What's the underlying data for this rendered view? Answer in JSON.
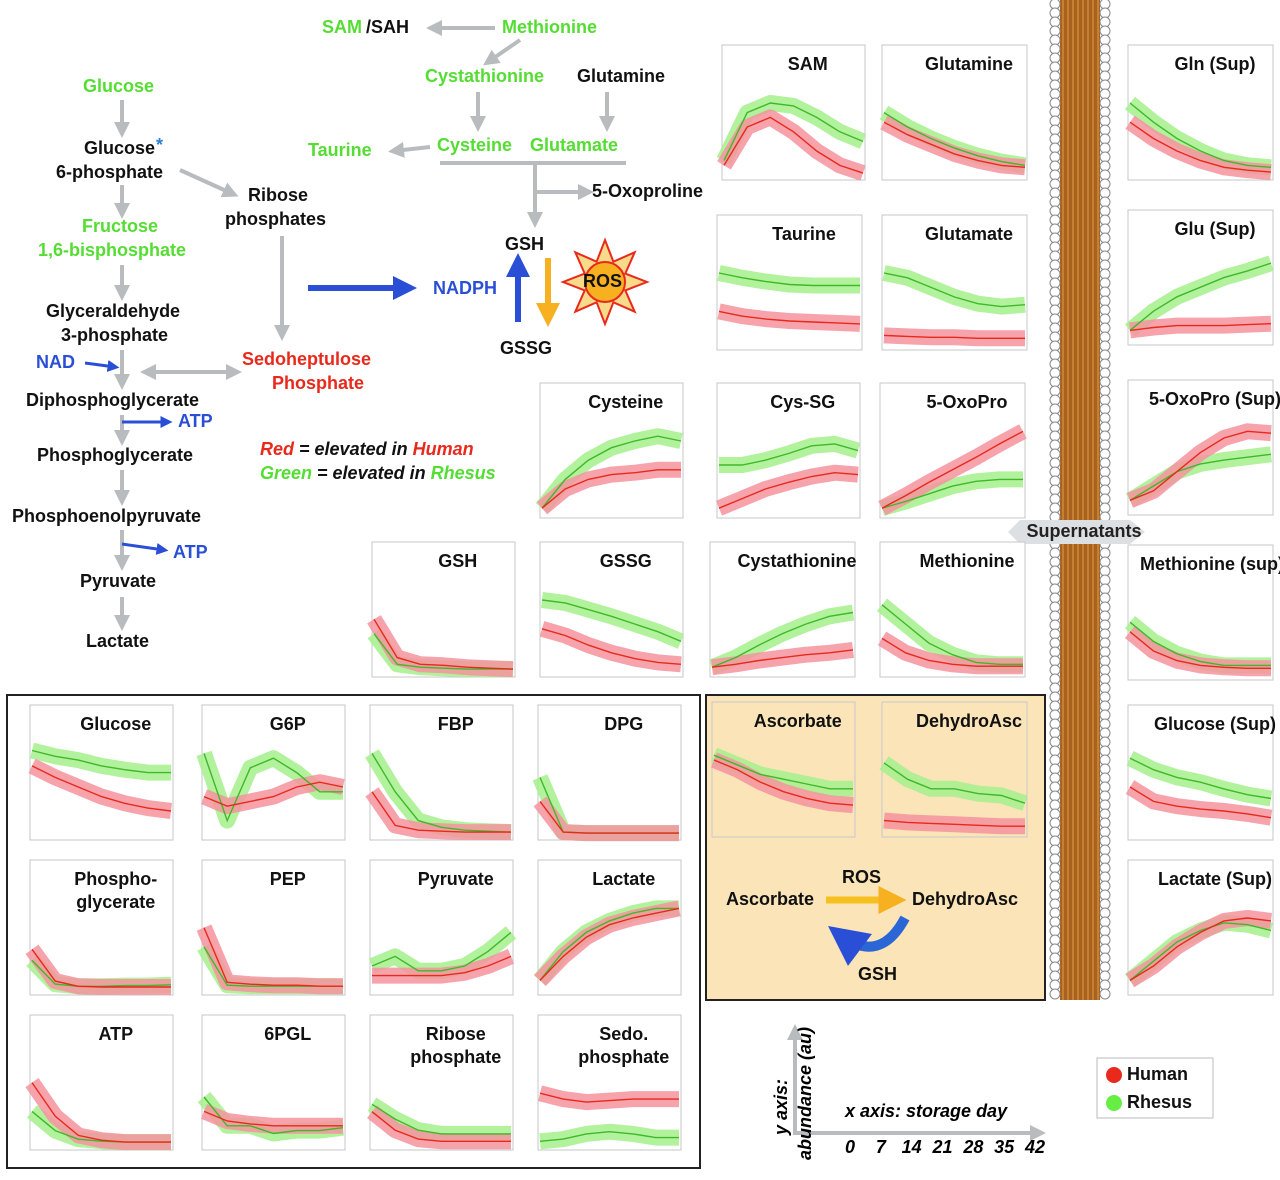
{
  "pathway": {
    "nodes": [
      {
        "label": "SAM",
        "color": "#55dd33"
      },
      {
        "label": "/SAH",
        "color": "#111111"
      },
      {
        "label": "Methionine",
        "color": "#55dd33"
      },
      {
        "label": "Cystathionine",
        "color": "#55dd33"
      },
      {
        "label": "Glutamine",
        "color": "#111111"
      },
      {
        "label": "Taurine",
        "color": "#55dd33"
      },
      {
        "label": "Cysteine",
        "color": "#55dd33"
      },
      {
        "label": "Glutamate",
        "color": "#55dd33"
      },
      {
        "label": "5-Oxoproline",
        "color": "#111111"
      },
      {
        "label": "GSH",
        "color": "#111111"
      },
      {
        "label": "NADPH",
        "color": "#2a4fd6"
      },
      {
        "label": "ROS",
        "color": "#111111"
      },
      {
        "label": "GSSG",
        "color": "#111111"
      },
      {
        "label": "Glucose",
        "color": "#55dd33"
      },
      {
        "label": "Glucose",
        "color": "#111111"
      },
      {
        "label": "*",
        "color": "#2a7fd6"
      },
      {
        "label": "6-phosphate",
        "color": "#111111"
      },
      {
        "label": "Ribose",
        "color": "#111111"
      },
      {
        "label": "phosphates",
        "color": "#111111"
      },
      {
        "label": "Fructose",
        "color": "#55dd33"
      },
      {
        "label": "1,6-bisphosphate",
        "color": "#55dd33"
      },
      {
        "label": "Glyceraldehyde",
        "color": "#111111"
      },
      {
        "label": "3-phosphate",
        "color": "#111111"
      },
      {
        "label": "NAD",
        "color": "#2a4fd6"
      },
      {
        "label": "Sedoheptulose",
        "color": "#e8291c"
      },
      {
        "label": "Phosphate",
        "color": "#e8291c"
      },
      {
        "label": "Diphosphoglycerate",
        "color": "#111111"
      },
      {
        "label": "ATP",
        "color": "#2a4fd6"
      },
      {
        "label": "Phosphoglycerate",
        "color": "#111111"
      },
      {
        "label": "Phosphoenolpyruvate",
        "color": "#111111"
      },
      {
        "label": "ATP",
        "color": "#2a4fd6"
      },
      {
        "label": "Pyruvate",
        "color": "#111111"
      },
      {
        "label": "Lactate",
        "color": "#111111"
      }
    ],
    "note": [
      [
        {
          "text": "Red",
          "color": "#e8291c"
        },
        {
          "text": " = elevated in ",
          "color": "#111111"
        },
        {
          "text": "Human",
          "color": "#e8291c"
        }
      ],
      [
        {
          "text": "Green",
          "color": "#55dd33"
        },
        {
          "text": " = elevated in ",
          "color": "#111111"
        },
        {
          "text": "Rhesus",
          "color": "#55dd33"
        }
      ]
    ]
  },
  "panels": [
    {
      "title": [
        "SAM"
      ],
      "human": [
        0.1,
        0.5,
        0.6,
        0.45,
        0.25,
        0.1,
        0.02
      ],
      "rhesus": [
        0.15,
        0.65,
        0.75,
        0.72,
        0.6,
        0.45,
        0.35
      ]
    },
    {
      "title": [
        "Glutamine"
      ],
      "human": [
        0.55,
        0.42,
        0.32,
        0.22,
        0.15,
        0.1,
        0.08
      ],
      "rhesus": [
        0.65,
        0.5,
        0.38,
        0.28,
        0.2,
        0.14,
        0.1
      ]
    },
    {
      "title": [
        "Gln (Sup)"
      ],
      "human": [
        0.55,
        0.38,
        0.25,
        0.15,
        0.08,
        0.05,
        0.03
      ],
      "rhesus": [
        0.75,
        0.55,
        0.38,
        0.25,
        0.15,
        0.1,
        0.08
      ]
    },
    {
      "title": [
        "Taurine"
      ],
      "human": [
        0.35,
        0.3,
        0.27,
        0.25,
        0.24,
        0.23,
        0.22
      ],
      "rhesus": [
        0.75,
        0.7,
        0.66,
        0.63,
        0.62,
        0.62,
        0.62
      ]
    },
    {
      "title": [
        "Glutamate"
      ],
      "human": [
        0.1,
        0.09,
        0.08,
        0.08,
        0.07,
        0.07,
        0.07
      ],
      "rhesus": [
        0.75,
        0.7,
        0.6,
        0.5,
        0.43,
        0.4,
        0.42
      ]
    },
    {
      "title": [
        "Glu (Sup)"
      ],
      "human": [
        0.1,
        0.13,
        0.15,
        0.15,
        0.15,
        0.16,
        0.17
      ],
      "rhesus": [
        0.1,
        0.3,
        0.45,
        0.55,
        0.65,
        0.72,
        0.8
      ]
    },
    {
      "title": [
        "Cysteine"
      ],
      "human": [
        0.05,
        0.25,
        0.35,
        0.4,
        0.42,
        0.45,
        0.45
      ],
      "rhesus": [
        0.05,
        0.35,
        0.55,
        0.68,
        0.75,
        0.8,
        0.75
      ]
    },
    {
      "title": [
        "Cys-SG"
      ],
      "human": [
        0.05,
        0.15,
        0.25,
        0.32,
        0.38,
        0.42,
        0.4
      ],
      "rhesus": [
        0.5,
        0.5,
        0.55,
        0.62,
        0.7,
        0.72,
        0.65
      ]
    },
    {
      "title": [
        "5-OxoPro"
      ],
      "human": [
        0.05,
        0.18,
        0.32,
        0.45,
        0.58,
        0.72,
        0.85
      ],
      "rhesus": [
        0.05,
        0.12,
        0.2,
        0.28,
        0.33,
        0.35,
        0.35
      ]
    },
    {
      "title": [
        "5-OxoPro (Sup)"
      ],
      "human": [
        0.1,
        0.2,
        0.4,
        0.6,
        0.75,
        0.82,
        0.8
      ],
      "rhesus": [
        0.1,
        0.25,
        0.4,
        0.48,
        0.52,
        0.55,
        0.58
      ]
    },
    {
      "title": [
        "GSH"
      ],
      "human": [
        0.55,
        0.15,
        0.08,
        0.07,
        0.05,
        0.04,
        0.03
      ],
      "rhesus": [
        0.4,
        0.08,
        0.05,
        0.04,
        0.03,
        0.03,
        0.03
      ]
    },
    {
      "title": [
        "GSSG"
      ],
      "human": [
        0.45,
        0.38,
        0.28,
        0.2,
        0.14,
        0.1,
        0.08
      ],
      "rhesus": [
        0.75,
        0.72,
        0.65,
        0.58,
        0.5,
        0.42,
        0.32
      ]
    },
    {
      "title": [
        "Cystathionine"
      ],
      "human": [
        0.05,
        0.08,
        0.12,
        0.15,
        0.18,
        0.2,
        0.23
      ],
      "rhesus": [
        0.05,
        0.15,
        0.28,
        0.4,
        0.5,
        0.58,
        0.62
      ]
    },
    {
      "title": [
        "Methionine"
      ],
      "human": [
        0.35,
        0.2,
        0.12,
        0.08,
        0.06,
        0.06,
        0.06
      ],
      "rhesus": [
        0.7,
        0.5,
        0.3,
        0.18,
        0.1,
        0.08,
        0.08
      ]
    },
    {
      "title": [
        "Methionine (sup))"
      ],
      "human": [
        0.45,
        0.25,
        0.15,
        0.1,
        0.08,
        0.07,
        0.07
      ],
      "rhesus": [
        0.55,
        0.35,
        0.22,
        0.14,
        0.1,
        0.1,
        0.1
      ]
    },
    {
      "title": [
        "Ascorbate"
      ],
      "human": [
        0.75,
        0.65,
        0.52,
        0.42,
        0.35,
        0.3,
        0.28
      ],
      "rhesus": [
        0.8,
        0.7,
        0.6,
        0.55,
        0.5,
        0.45,
        0.45
      ]
    },
    {
      "title": [
        "DehydroAsc"
      ],
      "human": [
        0.12,
        0.1,
        0.09,
        0.08,
        0.07,
        0.06,
        0.06
      ],
      "rhesus": [
        0.72,
        0.55,
        0.45,
        0.45,
        0.4,
        0.38,
        0.3
      ]
    },
    {
      "title": [
        "Glucose (Sup)"
      ],
      "human": [
        0.5,
        0.35,
        0.3,
        0.27,
        0.25,
        0.22,
        0.18
      ],
      "rhesus": [
        0.8,
        0.68,
        0.6,
        0.55,
        0.48,
        0.42,
        0.38
      ]
    },
    {
      "title": [
        "Lactate (Sup)"
      ],
      "human": [
        0.1,
        0.25,
        0.45,
        0.6,
        0.72,
        0.75,
        0.72
      ],
      "rhesus": [
        0.1,
        0.3,
        0.5,
        0.62,
        0.7,
        0.68,
        0.62
      ]
    },
    {
      "title": [
        "Glucose"
      ],
      "human": [
        0.72,
        0.6,
        0.5,
        0.4,
        0.33,
        0.28,
        0.25
      ],
      "rhesus": [
        0.88,
        0.82,
        0.78,
        0.72,
        0.68,
        0.65,
        0.65
      ]
    },
    {
      "title": [
        "G6P"
      ],
      "human": [
        0.4,
        0.3,
        0.35,
        0.4,
        0.5,
        0.55,
        0.5
      ],
      "rhesus": [
        0.85,
        0.15,
        0.7,
        0.8,
        0.65,
        0.45,
        0.45
      ]
    },
    {
      "title": [
        "FBP"
      ],
      "human": [
        0.45,
        0.1,
        0.05,
        0.04,
        0.03,
        0.03,
        0.03
      ],
      "rhesus": [
        0.85,
        0.45,
        0.15,
        0.08,
        0.05,
        0.04,
        0.03
      ]
    },
    {
      "title": [
        "DPG"
      ],
      "human": [
        0.35,
        0.03,
        0.02,
        0.02,
        0.02,
        0.02,
        0.02
      ],
      "rhesus": [
        0.6,
        0.03,
        0.02,
        0.02,
        0.02,
        0.02,
        0.02
      ]
    },
    {
      "title": [
        "Phospho-",
        "glycerate"
      ],
      "human": [
        0.55,
        0.12,
        0.05,
        0.04,
        0.04,
        0.04,
        0.04
      ],
      "rhesus": [
        0.4,
        0.08,
        0.05,
        0.05,
        0.06,
        0.06,
        0.07
      ]
    },
    {
      "title": [
        "PEP"
      ],
      "human": [
        0.65,
        0.08,
        0.06,
        0.05,
        0.05,
        0.04,
        0.04
      ],
      "rhesus": [
        0.45,
        0.05,
        0.04,
        0.04,
        0.04,
        0.04,
        0.04
      ]
    },
    {
      "title": [
        "Pyruvate"
      ],
      "human": [
        0.15,
        0.15,
        0.15,
        0.15,
        0.18,
        0.25,
        0.35
      ],
      "rhesus": [
        0.25,
        0.35,
        0.2,
        0.2,
        0.25,
        0.4,
        0.6
      ]
    },
    {
      "title": [
        "Lactate"
      ],
      "human": [
        0.1,
        0.35,
        0.55,
        0.68,
        0.75,
        0.8,
        0.85
      ],
      "rhesus": [
        0.1,
        0.4,
        0.6,
        0.72,
        0.8,
        0.85,
        0.85
      ]
    },
    {
      "title": [
        "ATP"
      ],
      "human": [
        0.65,
        0.3,
        0.1,
        0.05,
        0.03,
        0.03,
        0.03
      ],
      "rhesus": [
        0.35,
        0.15,
        0.06,
        0.04,
        0.03,
        0.03,
        0.03
      ]
    },
    {
      "title": [
        "6PGL"
      ],
      "human": [
        0.35,
        0.25,
        0.22,
        0.2,
        0.2,
        0.2,
        0.2
      ],
      "rhesus": [
        0.5,
        0.2,
        0.2,
        0.12,
        0.15,
        0.15,
        0.18
      ]
    },
    {
      "title": [
        "Ribose",
        "phosphate"
      ],
      "human": [
        0.45,
        0.2,
        0.08,
        0.05,
        0.05,
        0.05,
        0.05
      ],
      "rhesus": [
        0.55,
        0.35,
        0.2,
        0.15,
        0.15,
        0.15,
        0.15
      ]
    },
    {
      "title": [
        "Sedo.",
        "phosphate"
      ],
      "human": [
        0.7,
        0.62,
        0.58,
        0.6,
        0.62,
        0.62,
        0.62
      ],
      "rhesus": [
        0.05,
        0.08,
        0.15,
        0.18,
        0.15,
        0.1,
        0.1
      ]
    }
  ],
  "supernatants": "Supernatants",
  "ascorbate_cycle": [
    "Ascorbate",
    "ROS",
    "DehydroAsc",
    "GSH"
  ],
  "axis_key": {
    "y_label": "y axis:",
    "y_label2": "abundance (au)",
    "x_label": "x axis: storage day",
    "x_ticks": [
      0,
      7,
      14,
      21,
      28,
      35,
      42
    ]
  },
  "legend": [
    {
      "name": "Human",
      "color": "#e8291c"
    },
    {
      "name": "Rhesus",
      "color": "#66ee44"
    }
  ]
}
